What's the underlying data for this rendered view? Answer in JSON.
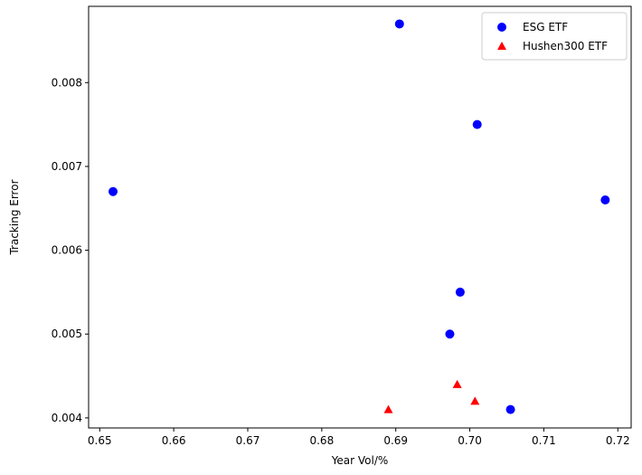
{
  "chart_data": {
    "type": "scatter",
    "title": "",
    "xlabel": "Year Vol/%",
    "ylabel": "Tracking Error",
    "xlim": [
      0.6485,
      0.7218
    ],
    "ylim": [
      0.00388,
      0.00891
    ],
    "xticks": [
      0.65,
      0.66,
      0.67,
      0.68,
      0.69,
      0.7,
      0.71,
      0.72
    ],
    "xtick_labels": [
      "0.65",
      "0.66",
      "0.67",
      "0.68",
      "0.69",
      "0.70",
      "0.71",
      "0.72"
    ],
    "yticks": [
      0.004,
      0.005,
      0.006,
      0.007,
      0.008
    ],
    "ytick_labels": [
      "0.004",
      "0.005",
      "0.006",
      "0.007",
      "0.008"
    ],
    "grid": false,
    "legend": "top-right",
    "series": [
      {
        "name": "ESG ETF",
        "marker": "circle",
        "color": "#0000ff",
        "points": [
          {
            "x": 0.6518,
            "y": 0.0067
          },
          {
            "x": 0.6905,
            "y": 0.0087
          },
          {
            "x": 0.701,
            "y": 0.0075
          },
          {
            "x": 0.7183,
            "y": 0.0066
          },
          {
            "x": 0.6987,
            "y": 0.0055
          },
          {
            "x": 0.6973,
            "y": 0.005
          },
          {
            "x": 0.7055,
            "y": 0.0041
          }
        ]
      },
      {
        "name": "Hushen300 ETF",
        "marker": "triangle",
        "color": "#ff0000",
        "points": [
          {
            "x": 0.689,
            "y": 0.0041
          },
          {
            "x": 0.6983,
            "y": 0.0044
          },
          {
            "x": 0.7007,
            "y": 0.0042
          }
        ]
      }
    ]
  }
}
